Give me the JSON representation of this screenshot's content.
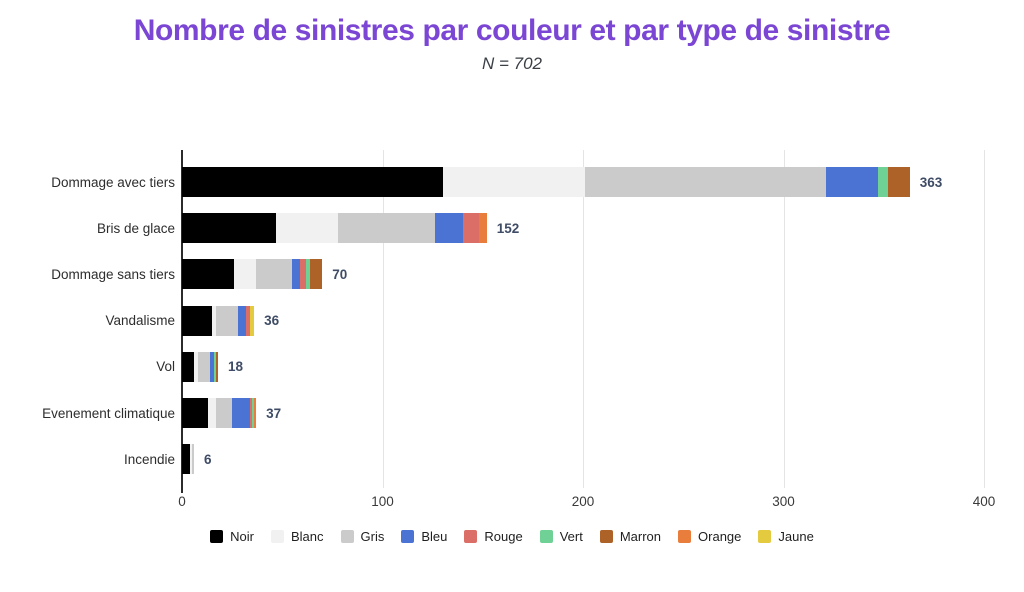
{
  "header": {
    "title": "Nombre de sinistres par couleur et par type de sinistre",
    "subtitle": "N = 702"
  },
  "colors": {
    "title": "#7b46d4",
    "subtitle": "#3a3f45",
    "value_label": "#3f4c66",
    "axis_line": "#2b2b2b",
    "gridline": "#e4e4e4",
    "tick_label": "#3a3a3a",
    "category_label": "#2d2d2d",
    "background": "#ffffff"
  },
  "legend": {
    "position": "bottom",
    "items": [
      {
        "label": "Noir",
        "color": "#000000"
      },
      {
        "label": "Blanc",
        "color": "#f1f1f1"
      },
      {
        "label": "Gris",
        "color": "#cbcbcb"
      },
      {
        "label": "Bleu",
        "color": "#4b73d3"
      },
      {
        "label": "Rouge",
        "color": "#dc6e68"
      },
      {
        "label": "Vert",
        "color": "#6fd195"
      },
      {
        "label": "Marron",
        "color": "#ad6228"
      },
      {
        "label": "Orange",
        "color": "#e87d3c"
      },
      {
        "label": "Jaune",
        "color": "#e4ca3e"
      }
    ]
  },
  "chart_data": {
    "type": "bar",
    "orientation": "horizontal",
    "stacked": true,
    "title": "Nombre de sinistres par couleur et par type de sinistre",
    "subtitle": "N = 702",
    "xlabel": "",
    "ylabel": "",
    "xlim": [
      0,
      400
    ],
    "x_ticks": [
      0,
      100,
      200,
      300,
      400
    ],
    "grid": true,
    "categories": [
      "Dommage avec tiers",
      "Bris de glace",
      "Dommage sans tiers",
      "Vandalisme",
      "Vol",
      "Evenement climatique",
      "Incendie"
    ],
    "totals": [
      363,
      152,
      70,
      36,
      18,
      37,
      6
    ],
    "series": [
      {
        "name": "Noir",
        "color": "#000000",
        "values": [
          130,
          47,
          26,
          15,
          6,
          13,
          4
        ]
      },
      {
        "name": "Blanc",
        "color": "#f1f1f1",
        "values": [
          71,
          31,
          11,
          2,
          2,
          4,
          1
        ]
      },
      {
        "name": "Gris",
        "color": "#cbcbcb",
        "values": [
          120,
          48,
          18,
          11,
          6,
          8,
          1
        ]
      },
      {
        "name": "Bleu",
        "color": "#4b73d3",
        "values": [
          26,
          14,
          4,
          4,
          2,
          9,
          0
        ]
      },
      {
        "name": "Rouge",
        "color": "#dc6e68",
        "values": [
          0,
          8,
          3,
          2,
          0,
          1,
          0
        ]
      },
      {
        "name": "Vert",
        "color": "#6fd195",
        "values": [
          5,
          0,
          2,
          0,
          1,
          1,
          0
        ]
      },
      {
        "name": "Marron",
        "color": "#ad6228",
        "values": [
          11,
          0,
          6,
          0,
          1,
          0,
          0
        ]
      },
      {
        "name": "Orange",
        "color": "#e87d3c",
        "values": [
          0,
          4,
          0,
          0,
          0,
          1,
          0
        ]
      },
      {
        "name": "Jaune",
        "color": "#e4ca3e",
        "values": [
          0,
          0,
          0,
          2,
          0,
          0,
          0
        ]
      }
    ]
  }
}
